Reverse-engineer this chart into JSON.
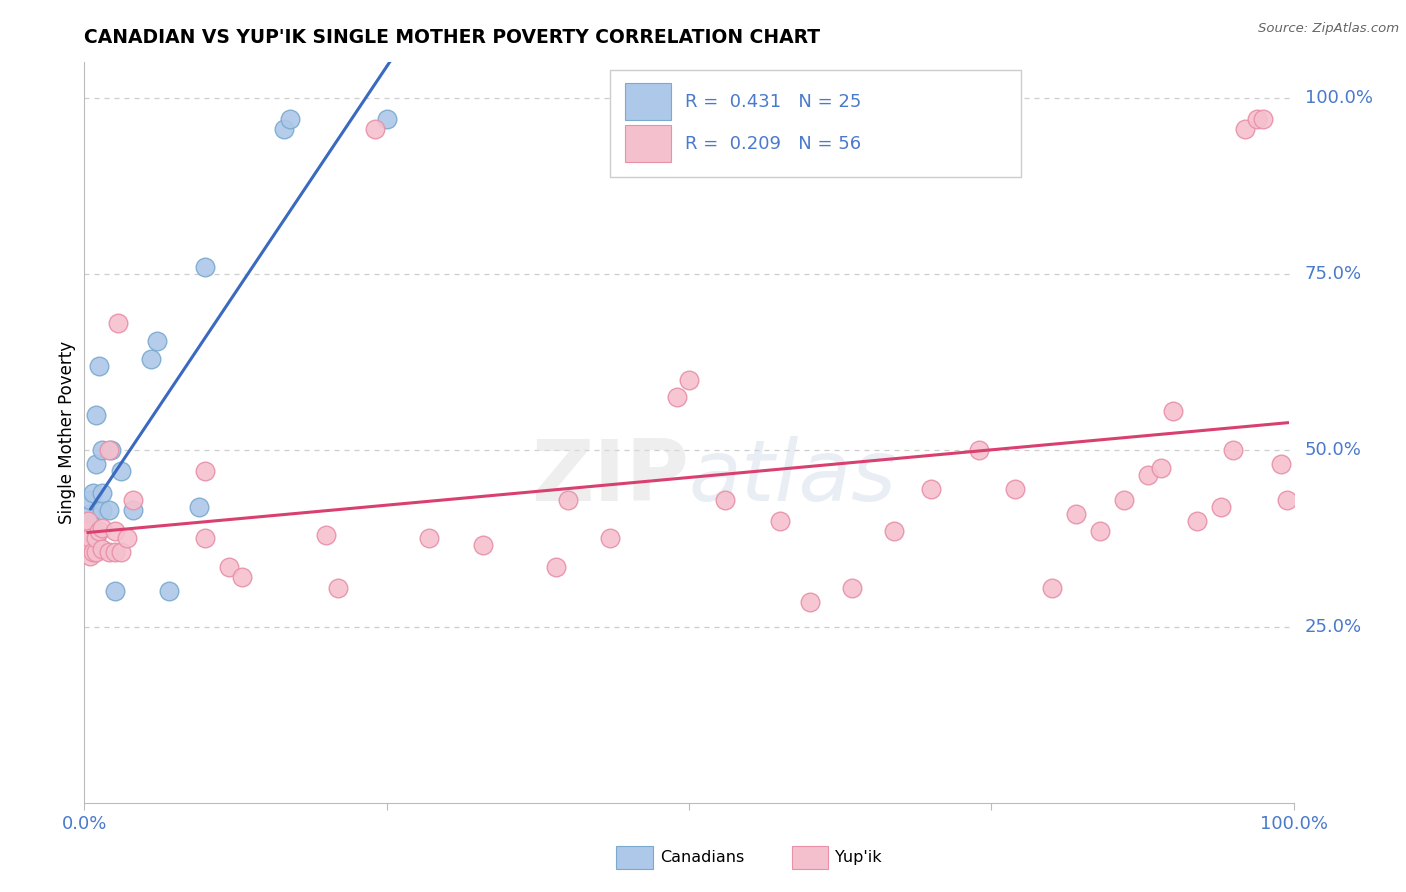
{
  "title": "CANADIAN VS YUP'IK SINGLE MOTHER POVERTY CORRELATION CHART",
  "source": "Source: ZipAtlas.com",
  "ylabel": "Single Mother Poverty",
  "watermark_zip": "ZIP",
  "watermark_atlas": "atlas",
  "legend_canadians": "Canadians",
  "legend_yupik": "Yup'ik",
  "r_canadian": 0.431,
  "n_canadian": 25,
  "r_yupik": 0.209,
  "n_yupik": 56,
  "canadian_color": "#adc8e8",
  "canadian_edge": "#7aaad0",
  "yupik_color": "#f5c0ce",
  "yupik_edge": "#e890a8",
  "line_canadian_color": "#3a6abf",
  "line_yupik_color": "#d94070",
  "background_color": "#ffffff",
  "grid_color": "#cccccc",
  "tick_color": "#4a7acc",
  "canadians_x": [
    0.005,
    0.005,
    0.005,
    0.005,
    0.007,
    0.007,
    0.01,
    0.01,
    0.012,
    0.015,
    0.015,
    0.015,
    0.02,
    0.022,
    0.025,
    0.03,
    0.04,
    0.055,
    0.06,
    0.07,
    0.095,
    0.1,
    0.165,
    0.17,
    0.25
  ],
  "canadians_y": [
    0.38,
    0.395,
    0.41,
    0.43,
    0.38,
    0.44,
    0.48,
    0.55,
    0.62,
    0.415,
    0.44,
    0.5,
    0.415,
    0.5,
    0.3,
    0.47,
    0.415,
    0.63,
    0.655,
    0.3,
    0.42,
    0.76,
    0.955,
    0.97,
    0.97
  ],
  "yupik_x": [
    0.003,
    0.003,
    0.003,
    0.005,
    0.005,
    0.007,
    0.01,
    0.01,
    0.012,
    0.015,
    0.015,
    0.02,
    0.02,
    0.025,
    0.025,
    0.028,
    0.03,
    0.035,
    0.04,
    0.1,
    0.1,
    0.12,
    0.13,
    0.2,
    0.21,
    0.24,
    0.285,
    0.33,
    0.39,
    0.4,
    0.435,
    0.49,
    0.5,
    0.53,
    0.575,
    0.6,
    0.635,
    0.67,
    0.7,
    0.74,
    0.77,
    0.8,
    0.82,
    0.84,
    0.86,
    0.88,
    0.89,
    0.9,
    0.92,
    0.94,
    0.95,
    0.96,
    0.97,
    0.975,
    0.99,
    0.995
  ],
  "yupik_y": [
    0.37,
    0.385,
    0.4,
    0.35,
    0.375,
    0.355,
    0.355,
    0.375,
    0.385,
    0.36,
    0.39,
    0.355,
    0.5,
    0.355,
    0.385,
    0.68,
    0.355,
    0.375,
    0.43,
    0.375,
    0.47,
    0.335,
    0.32,
    0.38,
    0.305,
    0.955,
    0.375,
    0.365,
    0.335,
    0.43,
    0.375,
    0.575,
    0.6,
    0.43,
    0.4,
    0.285,
    0.305,
    0.385,
    0.445,
    0.5,
    0.445,
    0.305,
    0.41,
    0.385,
    0.43,
    0.465,
    0.475,
    0.555,
    0.4,
    0.42,
    0.5,
    0.955,
    0.97,
    0.97,
    0.48,
    0.43
  ],
  "xlim": [
    0.0,
    1.0
  ],
  "ylim": [
    0.0,
    1.05
  ],
  "xtick_positions": [
    0.0,
    0.25,
    0.5,
    0.75,
    1.0
  ],
  "ytick_grid": [
    0.25,
    0.5,
    0.75,
    1.0
  ],
  "ytick_labels": [
    "25.0%",
    "50.0%",
    "75.0%",
    "100.0%"
  ]
}
